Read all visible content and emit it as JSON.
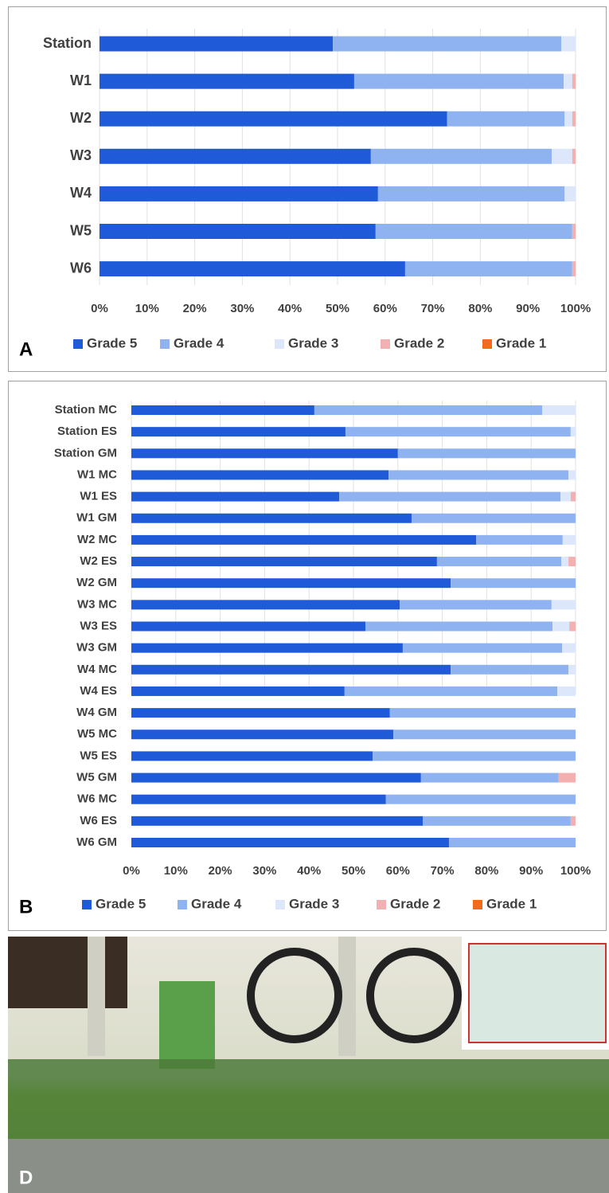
{
  "chart_data": [
    {
      "type": "stacked-barh",
      "panel_label": "A",
      "categories": [
        "Station",
        "W1",
        "W2",
        "W3",
        "W4",
        "W5",
        "W6"
      ],
      "series": [
        {
          "name": "Grade 5",
          "color": "#1f5bd8",
          "values": [
            49,
            53.5,
            73,
            57,
            58.5,
            58,
            64.2
          ]
        },
        {
          "name": "Grade 4",
          "color": "#8fb3f0",
          "values": [
            48,
            44,
            24.7,
            38,
            39.2,
            41.3,
            35.1
          ]
        },
        {
          "name": "Grade 3",
          "color": "#dce7fb",
          "values": [
            3,
            1.8,
            1.6,
            4.3,
            2.3,
            0,
            0
          ]
        },
        {
          "name": "Grade 2",
          "color": "#f3b0b0",
          "values": [
            0,
            0.7,
            0.7,
            0.7,
            0,
            0.7,
            0.7
          ]
        },
        {
          "name": "Grade 1",
          "color": "#f26b1d",
          "values": [
            0,
            0,
            0,
            0,
            0,
            0,
            0
          ]
        }
      ],
      "xlim": [
        0,
        100
      ],
      "xticks": [
        {
          "value": 0,
          "label": "0%"
        },
        {
          "value": 10,
          "label": "10%"
        },
        {
          "value": 20,
          "label": "20%"
        },
        {
          "value": 30,
          "label": "30%"
        },
        {
          "value": 40,
          "label": "40%"
        },
        {
          "value": 50,
          "label": "50%"
        },
        {
          "value": 60,
          "label": "60%"
        },
        {
          "value": 70,
          "label": "70%"
        },
        {
          "value": 80,
          "label": "80%"
        },
        {
          "value": 90,
          "label": "90%"
        },
        {
          "value": 100,
          "label": "100%"
        }
      ],
      "grid": true,
      "legend": "bottom"
    },
    {
      "type": "stacked-barh",
      "panel_label": "B",
      "categories": [
        "Station MC",
        "Station ES",
        "Station GM",
        "W1 MC",
        "W1 ES",
        "W1 GM",
        "W2 MC",
        "W2 ES",
        "W2 GM",
        "W3 MC",
        "W3 ES",
        "W3 GM",
        "W4 MC",
        "W4 ES",
        "W4 GM",
        "W5 MC",
        "W5 ES",
        "W5 GM",
        "W6 MC",
        "W6 ES",
        "W6 GM"
      ],
      "series": [
        {
          "name": "Grade 5",
          "color": "#1f5bd8",
          "values": [
            41.2,
            48.2,
            60,
            57.9,
            46.8,
            63.1,
            77.6,
            68.8,
            71.9,
            60.4,
            52.7,
            61.1,
            71.9,
            48,
            58.2,
            59,
            54.3,
            65.2,
            57.3,
            65.6,
            71.5
          ]
        },
        {
          "name": "Grade 4",
          "color": "#8fb3f0",
          "values": [
            51.3,
            50.7,
            40,
            40.5,
            49.8,
            36.9,
            19.5,
            28,
            28.1,
            34.2,
            42.1,
            35.9,
            26.5,
            47.9,
            41.8,
            41,
            45.7,
            31,
            42.7,
            33.3,
            28.5
          ]
        },
        {
          "name": "Grade 3",
          "color": "#dce7fb",
          "values": [
            7.5,
            1.1,
            0,
            1.6,
            2.3,
            0,
            2.9,
            1.6,
            0,
            5.4,
            3.8,
            3,
            1.6,
            4.1,
            0,
            0,
            0,
            0,
            0,
            0,
            0
          ]
        },
        {
          "name": "Grade 2",
          "color": "#f3b0b0",
          "values": [
            0,
            0,
            0,
            0,
            1.1,
            0,
            0,
            1.6,
            0,
            0,
            1.4,
            0,
            0,
            0,
            0,
            0,
            0,
            3.8,
            0,
            1.1,
            0
          ]
        },
        {
          "name": "Grade 1",
          "color": "#f26b1d",
          "values": [
            0,
            0,
            0,
            0,
            0,
            0,
            0,
            0,
            0,
            0,
            0,
            0,
            0,
            0,
            0,
            0,
            0,
            0,
            0,
            0,
            0
          ]
        }
      ],
      "xlim": [
        0,
        100
      ],
      "xticks": [
        {
          "value": 0,
          "label": "0%"
        },
        {
          "value": 10,
          "label": "10%"
        },
        {
          "value": 20,
          "label": "20%"
        },
        {
          "value": 30,
          "label": "30%"
        },
        {
          "value": 40,
          "label": "40%"
        },
        {
          "value": 50,
          "label": "50%"
        },
        {
          "value": 60,
          "label": "60%"
        },
        {
          "value": 70,
          "label": "70%"
        },
        {
          "value": 80,
          "label": "80%"
        },
        {
          "value": 90,
          "label": "90%"
        },
        {
          "value": 100,
          "label": "100%"
        }
      ],
      "grid": true,
      "legend": "bottom"
    }
  ],
  "photo": {
    "panel_label": "D"
  }
}
